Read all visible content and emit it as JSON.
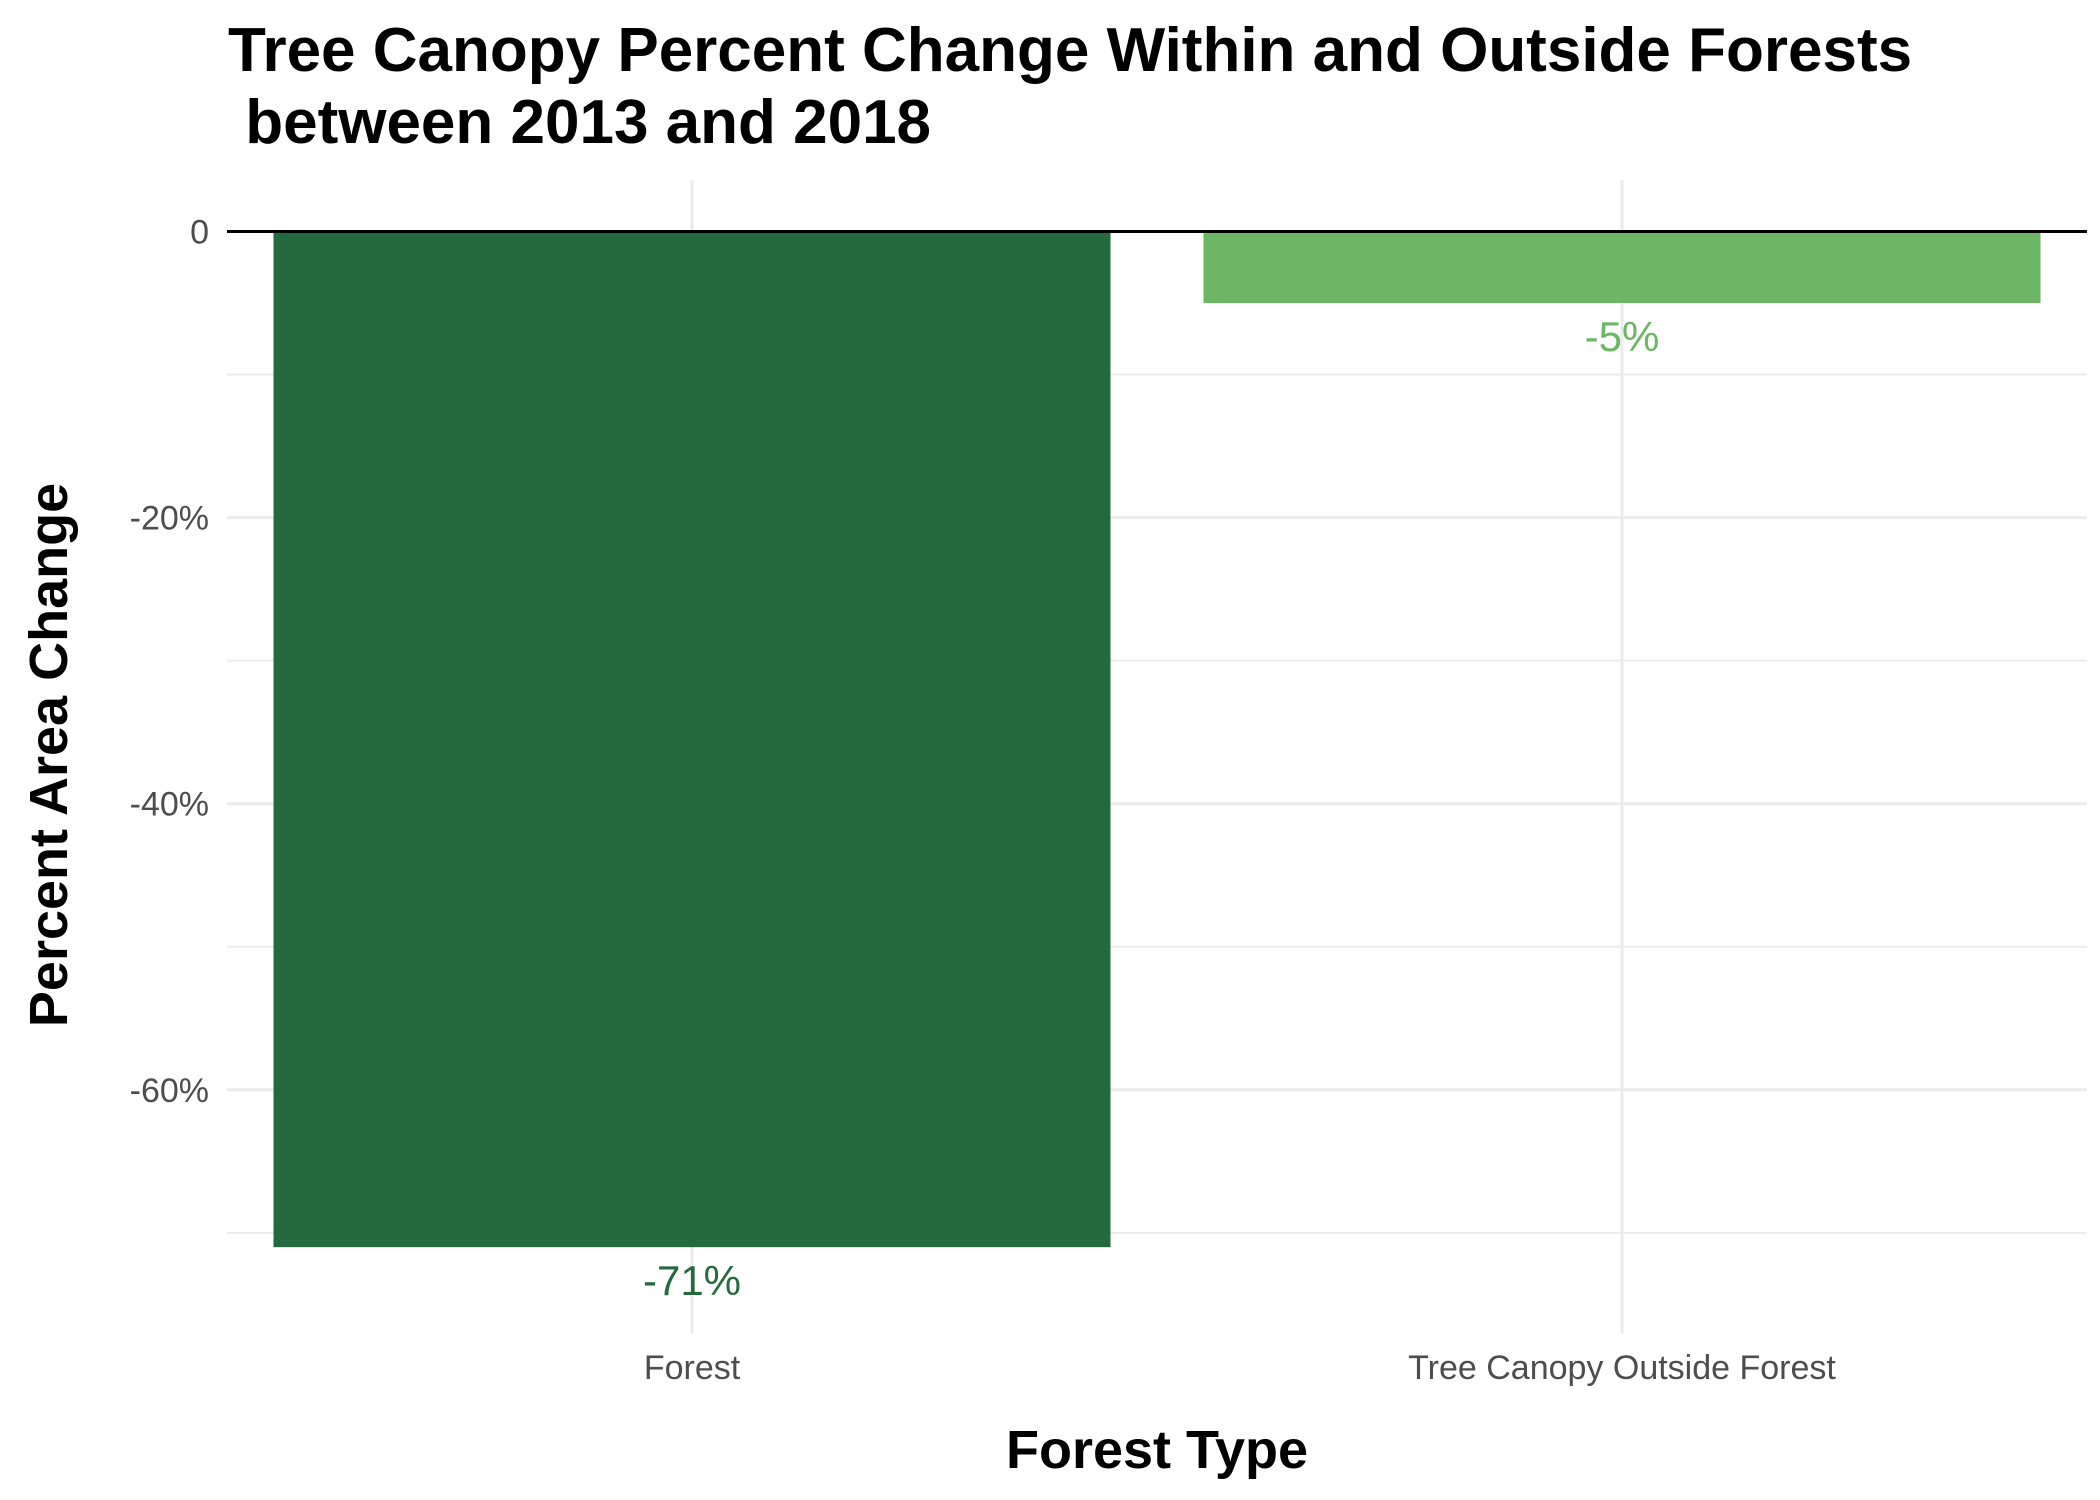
{
  "chart_data": {
    "type": "bar",
    "title": "Tree Canopy Percent Change Within and Outside Forests\n between 2013 and 2018",
    "title_lines": [
      "Tree Canopy Percent Change Within and Outside Forests",
      " between 2013 and 2018"
    ],
    "xlabel": "Forest Type",
    "ylabel": "Percent Area Change",
    "categories": [
      "Forest",
      "Tree Canopy Outside Forest"
    ],
    "values": [
      -71,
      -5
    ],
    "data_labels": [
      "-71%",
      "-5%"
    ],
    "colors": [
      "#246A3F",
      "#6DB665"
    ],
    "ylim": [
      -77,
      3.6
    ],
    "yticks": [
      0,
      -20,
      -40,
      -60
    ],
    "ytick_labels": [
      "0",
      "-20%",
      "-40%",
      "-60%"
    ],
    "minor_yticks": [
      -10,
      -30,
      -50,
      -70
    ],
    "grid": true,
    "zero_line": true,
    "legend": "none"
  }
}
